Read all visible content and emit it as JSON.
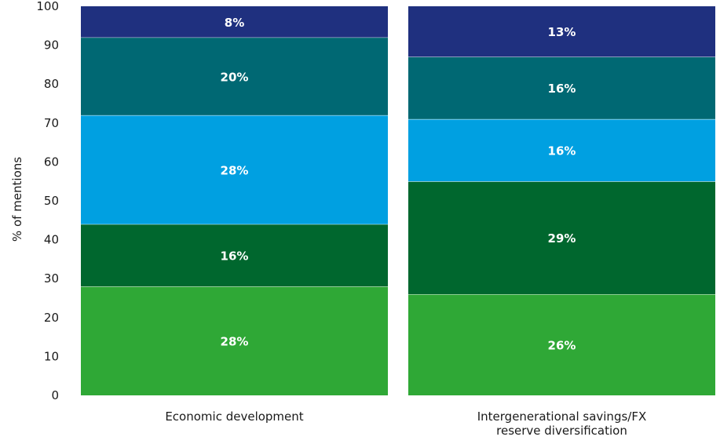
{
  "chart_data": {
    "type": "bar",
    "stacked": true,
    "ylabel": "% of mentions",
    "ylim": [
      0,
      100
    ],
    "yticks": [
      0,
      10,
      20,
      30,
      40,
      50,
      60,
      70,
      80,
      90,
      100
    ],
    "grid": false,
    "legend": "none",
    "categories": [
      [
        "Economic development"
      ],
      [
        "Intergenerational savings/FX",
        "reserve diversification"
      ]
    ],
    "segment_colors": [
      "#2fa836",
      "#00672e",
      "#00a0e1",
      "#006873",
      "#1f307f"
    ],
    "series": [
      {
        "values": [
          28,
          26
        ],
        "labels": [
          "28%",
          "26%"
        ]
      },
      {
        "values": [
          16,
          29
        ],
        "labels": [
          "16%",
          "29%"
        ]
      },
      {
        "values": [
          28,
          16
        ],
        "labels": [
          "28%",
          "16%"
        ]
      },
      {
        "values": [
          20,
          16
        ],
        "labels": [
          "20%",
          "16%"
        ]
      },
      {
        "values": [
          8,
          13
        ],
        "labels": [
          "8%",
          "13%"
        ]
      }
    ]
  }
}
